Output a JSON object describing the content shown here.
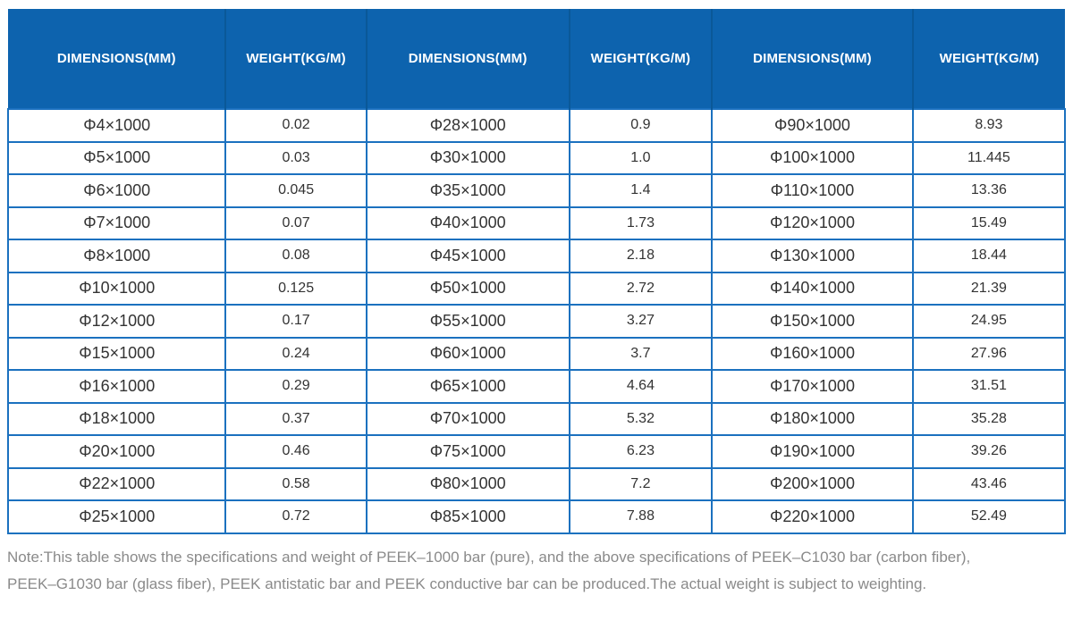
{
  "table": {
    "columns": [
      "DIMENSIONS(MM)",
      "WEIGHT(KG/M)",
      "DIMENSIONS(MM)",
      "WEIGHT(KG/M)",
      "DIMENSIONS(MM)",
      "WEIGHT(KG/M)"
    ],
    "rows": [
      [
        "Φ4×1000",
        "0.02",
        "Φ28×1000",
        "0.9",
        "Φ90×1000",
        "8.93"
      ],
      [
        "Φ5×1000",
        "0.03",
        "Φ30×1000",
        "1.0",
        "Φ100×1000",
        "11.445"
      ],
      [
        "Φ6×1000",
        "0.045",
        "Φ35×1000",
        "1.4",
        "Φ110×1000",
        "13.36"
      ],
      [
        "Φ7×1000",
        "0.07",
        "Φ40×1000",
        "1.73",
        "Φ120×1000",
        "15.49"
      ],
      [
        "Φ8×1000",
        "0.08",
        "Φ45×1000",
        "2.18",
        "Φ130×1000",
        "18.44"
      ],
      [
        "Φ10×1000",
        "0.125",
        "Φ50×1000",
        "2.72",
        "Φ140×1000",
        "21.39"
      ],
      [
        "Φ12×1000",
        "0.17",
        "Φ55×1000",
        "3.27",
        "Φ150×1000",
        "24.95"
      ],
      [
        "Φ15×1000",
        "0.24",
        "Φ60×1000",
        "3.7",
        "Φ160×1000",
        "27.96"
      ],
      [
        "Φ16×1000",
        "0.29",
        "Φ65×1000",
        "4.64",
        "Φ170×1000",
        "31.51"
      ],
      [
        "Φ18×1000",
        "0.37",
        "Φ70×1000",
        "5.32",
        "Φ180×1000",
        "35.28"
      ],
      [
        "Φ20×1000",
        "0.46",
        "Φ75×1000",
        "6.23",
        "Φ190×1000",
        "39.26"
      ],
      [
        "Φ22×1000",
        "0.58",
        "Φ80×1000",
        "7.2",
        "Φ200×1000",
        "43.46"
      ],
      [
        "Φ25×1000",
        "0.72",
        "Φ85×1000",
        "7.88",
        "Φ220×1000",
        "52.49"
      ]
    ]
  },
  "note": {
    "line1": "Note:This table shows the specifications and weight of PEEK–1000 bar (pure), and the above specifications of PEEK–C1030 bar (carbon fiber),",
    "line2": "PEEK–G1030 bar (glass fiber), PEEK antistatic bar and PEEK conductive bar can be produced.The actual weight is subject to weighting."
  },
  "colors": {
    "header_bg": "#0d63ae",
    "header_divider": "#0a5898",
    "grid_border": "#1b71bf",
    "cell_text": "#333333",
    "note_text": "#8a8a8a"
  }
}
